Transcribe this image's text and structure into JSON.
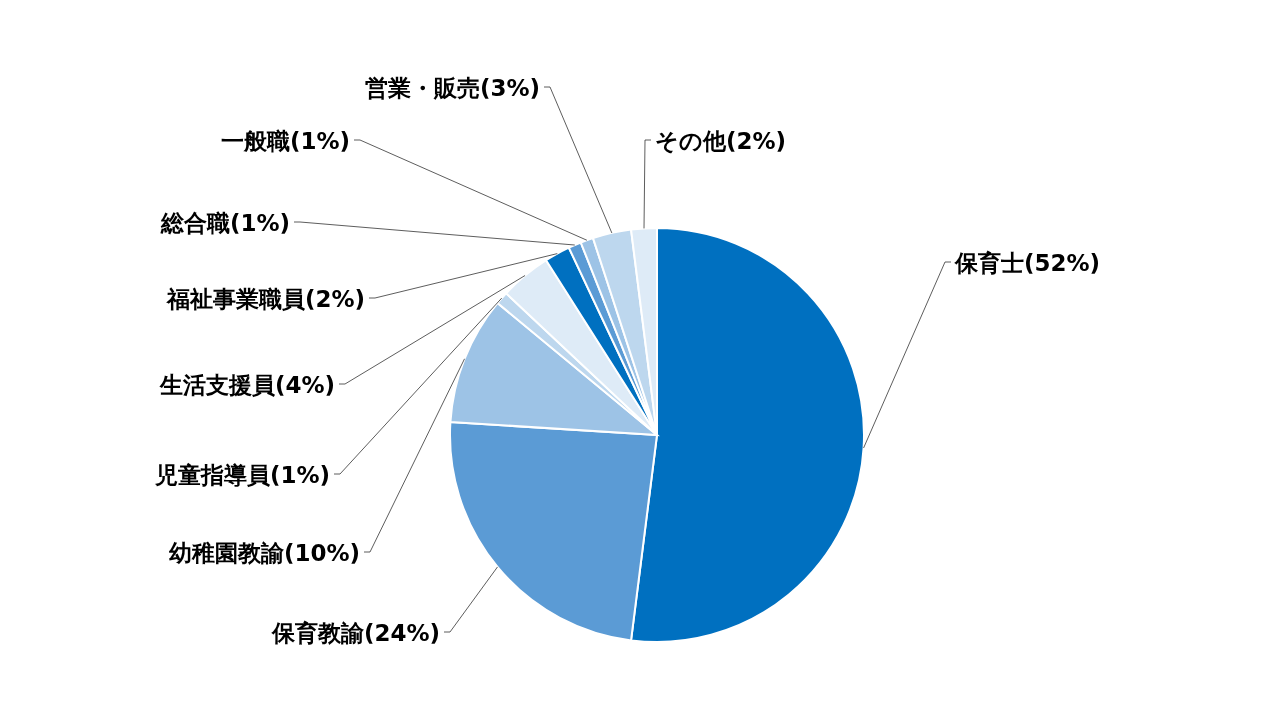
{
  "chart_data": {
    "type": "pie",
    "categories": [
      "保育士",
      "保育教諭",
      "幼稚園教諭",
      "児童指導員",
      "生活支援員",
      "福祉事業職員",
      "総合職",
      "一般職",
      "営業・販売",
      "その他"
    ],
    "values": [
      52,
      24,
      10,
      1,
      4,
      2,
      1,
      1,
      3,
      2
    ],
    "value_labels": [
      "(52%)",
      "(24%)",
      "(10%)",
      "(1%)",
      "(4%)",
      "(2%)",
      "(1%)",
      "(1%)",
      "(3%)",
      "(2%)"
    ],
    "colors": [
      "#0070c0",
      "#5b9bd5",
      "#9dc3e6",
      "#bdd7ee",
      "#deebf7",
      "#0070c0",
      "#5b9bd5",
      "#9dc3e6",
      "#bdd7ee",
      "#deebf7"
    ],
    "legend": false
  }
}
